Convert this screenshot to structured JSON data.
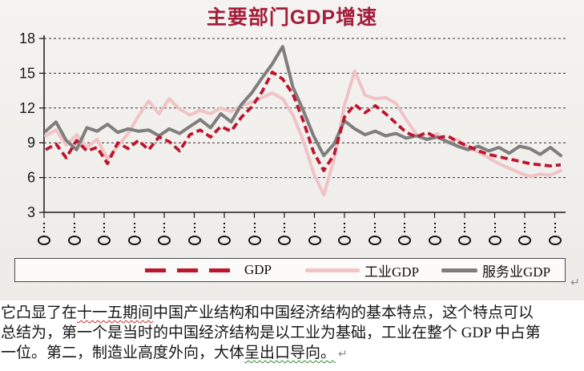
{
  "slide": {
    "title": "主要部门GDP增速",
    "title_color": "#A21E3B",
    "legend": {
      "items": [
        {
          "label": "GDP",
          "color": "#BE142D",
          "style": "dashed"
        },
        {
          "label": "工业GDP",
          "color": "#F0C3C5",
          "style": "solid"
        },
        {
          "label": "服务业GDP",
          "color": "#7E7E7E",
          "style": "solid"
        }
      ]
    }
  },
  "chart_data": {
    "type": "line",
    "title": "主要部门GDP增速",
    "xlabel": "",
    "ylabel": "",
    "ylim": [
      3,
      18
    ],
    "y_ticks": [
      18,
      15,
      12,
      9,
      6,
      3
    ],
    "grid": "horizontal-dashed",
    "legend_position": "bottom-box",
    "x_tick_count": 18,
    "x_tick_labels": [
      "⋮〇",
      "⋮〇",
      "⋮〇",
      "⋮〇",
      "⋮〇",
      "⋮〇",
      "⋮〇",
      "⋮〇",
      "⋮〇",
      "⋮〇",
      "⋮〇",
      "⋮〇",
      "⋮〇",
      "⋮〇",
      "⋮〇",
      "⋮〇",
      "⋮〇",
      "⋮〇"
    ],
    "series": [
      {
        "name": "工业GDP",
        "color": "#F0C3C5",
        "dash": false,
        "width": 4,
        "values": [
          9.6,
          10.1,
          8.8,
          9.7,
          8.6,
          9.3,
          7.6,
          8.7,
          9.8,
          11.3,
          12.6,
          11.5,
          12.8,
          11.9,
          11.4,
          11.8,
          11.5,
          12.0,
          11.7,
          12.2,
          12.5,
          12.9,
          13.3,
          12.8,
          11.4,
          9.2,
          6.4,
          4.5,
          7.6,
          12.2,
          15.2,
          13.1,
          12.8,
          12.9,
          12.4,
          11.0,
          9.7,
          9.3,
          9.8,
          9.0,
          9.3,
          8.6,
          8.2,
          7.7,
          7.2,
          6.8,
          6.4,
          6.1,
          6.3,
          6.2,
          6.6
        ]
      },
      {
        "name": "服务业GDP",
        "color": "#7E7E7E",
        "dash": false,
        "width": 4,
        "values": [
          10.0,
          10.8,
          9.2,
          8.4,
          10.3,
          10.0,
          10.6,
          9.9,
          10.2,
          10.0,
          10.1,
          9.6,
          10.2,
          9.8,
          10.4,
          11.0,
          10.3,
          11.5,
          10.8,
          12.3,
          13.3,
          14.6,
          15.8,
          17.3,
          13.8,
          11.8,
          9.6,
          7.9,
          8.9,
          10.9,
          10.2,
          9.7,
          10.0,
          9.6,
          9.8,
          9.4,
          9.6,
          9.3,
          9.5,
          9.1,
          8.7,
          8.4,
          8.7,
          8.3,
          8.6,
          8.1,
          8.7,
          8.5,
          8.0,
          8.6,
          7.9
        ]
      },
      {
        "name": "GDP",
        "color": "#BE142D",
        "dash": true,
        "width": 3.8,
        "values": [
          8.4,
          8.9,
          7.7,
          9.2,
          8.3,
          8.6,
          7.2,
          9.0,
          8.5,
          9.2,
          8.4,
          9.5,
          9.1,
          8.3,
          9.7,
          10.1,
          9.5,
          10.4,
          10.0,
          11.2,
          12.1,
          13.4,
          15.1,
          14.5,
          13.2,
          10.9,
          8.2,
          6.6,
          8.0,
          11.2,
          12.3,
          11.6,
          12.2,
          11.5,
          10.7,
          9.9,
          9.5,
          9.9,
          9.4,
          9.6,
          9.1,
          8.7,
          8.3,
          8.0,
          7.8,
          7.6,
          7.4,
          7.2,
          7.1,
          7.0,
          7.1
        ]
      }
    ]
  },
  "document_text": {
    "lines": [
      {
        "segments": [
          {
            "text": "它凸显了在"
          },
          {
            "text": "十一五期间",
            "underline": "red-wavy"
          },
          {
            "text": "中国产业结构和中国经济结构的基本特点，这个特点可以"
          }
        ]
      },
      {
        "segments": [
          {
            "text": "总结为，第一个是当时的中国经济结构是以工业为基础，工业在整个 GDP 中占第"
          }
        ]
      },
      {
        "segments": [
          {
            "text": "一位。第二，制造业高度外向，大体"
          },
          {
            "text": "呈出口导向。",
            "underline": "green-wavy"
          }
        ]
      }
    ],
    "return_mark": "↵"
  }
}
